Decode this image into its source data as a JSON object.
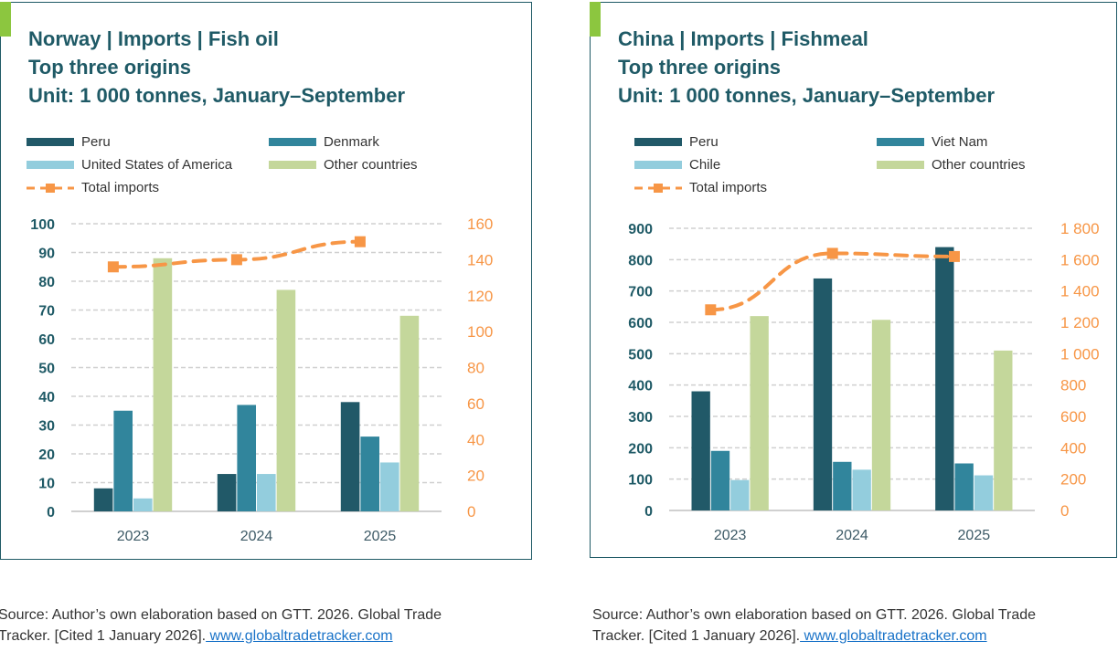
{
  "colors": {
    "peru": "#215968",
    "s2": "#31859c",
    "s3": "#93cddd",
    "other": "#c4d79b",
    "total": "#f79646",
    "axis_left": "#1f5a66"
  },
  "chart_data": [
    {
      "type": "bar",
      "title_lines": [
        "Norway | Imports | Fish oil",
        "Top three origins",
        "Unit: 1 000 tonnes, January–September"
      ],
      "categories": [
        "2023",
        "2024",
        "2025"
      ],
      "series": [
        {
          "name": "Peru",
          "values": [
            8,
            13,
            38
          ]
        },
        {
          "name": "Denmark",
          "values": [
            35,
            37,
            26
          ]
        },
        {
          "name": "United States of America",
          "values": [
            4.5,
            13,
            17
          ]
        },
        {
          "name": "Other countries",
          "values": [
            88,
            77,
            68
          ]
        }
      ],
      "line": {
        "name": "Total imports",
        "values": [
          136,
          140,
          150
        ],
        "axis": "right"
      },
      "ylim": [
        0,
        100
      ],
      "yticks": [
        "0",
        "10",
        "20",
        "30",
        "40",
        "50",
        "60",
        "70",
        "80",
        "90",
        "100"
      ],
      "y2lim": [
        0,
        160
      ],
      "y2ticks": [
        "0",
        "20",
        "40",
        "60",
        "80",
        "100",
        "120",
        "140",
        "160"
      ],
      "grid": true,
      "legend": "top",
      "source": "Source: Author’s own elaboration based on GTT. 2026. Global Trade Tracker. [Cited 1 January 2026].",
      "link": " www.globaltradetracker.com"
    },
    {
      "type": "bar",
      "title_lines": [
        "China | Imports | Fishmeal",
        "Top three origins",
        "Unit: 1 000 tonnes, January–September"
      ],
      "categories": [
        "2023",
        "2024",
        "2025"
      ],
      "series": [
        {
          "name": "Peru",
          "values": [
            380,
            740,
            840
          ]
        },
        {
          "name": "Viet Nam",
          "values": [
            190,
            155,
            150
          ]
        },
        {
          "name": "Chile",
          "values": [
            97,
            130,
            112
          ]
        },
        {
          "name": "Other countries",
          "values": [
            620,
            608,
            510
          ]
        }
      ],
      "line": {
        "name": "Total imports",
        "values": [
          1280,
          1640,
          1620
        ],
        "axis": "right"
      },
      "ylim": [
        0,
        900
      ],
      "yticks": [
        "0",
        "100",
        "200",
        "300",
        "400",
        "500",
        "600",
        "700",
        "800",
        "900"
      ],
      "y2lim": [
        0,
        1800
      ],
      "y2ticks": [
        "0",
        "200",
        "400",
        "600",
        "800",
        "1 000",
        "1 200",
        "1 400",
        "1 600",
        "1 800"
      ],
      "grid": true,
      "legend": "top",
      "source": "Source: Author’s own elaboration based on GTT. 2026. Global Trade Tracker. [Cited 1 January 2026].",
      "link": " www.globaltradetracker.com"
    }
  ]
}
